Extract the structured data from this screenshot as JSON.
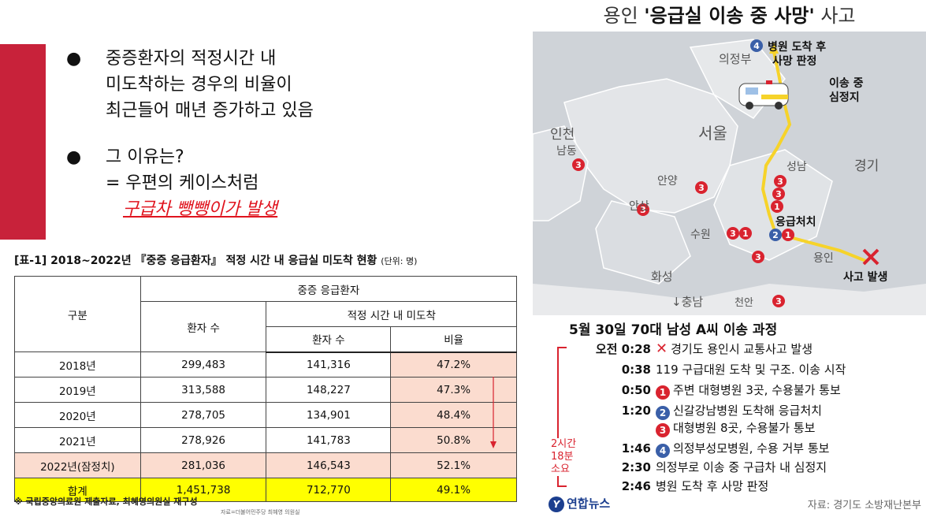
{
  "bullets": {
    "b1": [
      "중증환자의 적정시간 내",
      "미도착하는 경우의 비율이",
      "최근들어 매년 증가하고 있음"
    ],
    "b2_line1": "그 이유는?",
    "b2_line2": "= 우편의 케이스처럼",
    "b2_highlight": "구급차 뺑뺑이가 발생",
    "bullet_symbol": "●"
  },
  "table": {
    "caption": "[표-1] 2018~2022년 『중증 응급환자』 적정 시간 내 응급실 미도착 현황",
    "unit": "(단위: 명)",
    "header_group": "중증 응급환자",
    "header_category": "구분",
    "header_patients": "환자 수",
    "header_not_arrived": "적정 시간 내 미도착",
    "header_sub_patients": "환자 수",
    "header_sub_rate": "비율",
    "rows": [
      {
        "year": "2018년",
        "patients": "299,483",
        "not_arrived": "141,316",
        "rate": "47.2%"
      },
      {
        "year": "2019년",
        "patients": "313,588",
        "not_arrived": "148,227",
        "rate": "47.3%"
      },
      {
        "year": "2020년",
        "patients": "278,705",
        "not_arrived": "134,901",
        "rate": "48.4%"
      },
      {
        "year": "2021년",
        "patients": "278,926",
        "not_arrived": "141,783",
        "rate": "50.8%"
      },
      {
        "year": "2022년(잠정치)",
        "patients": "281,036",
        "not_arrived": "146,543",
        "rate": "52.1%"
      }
    ],
    "total": {
      "label": "합계",
      "patients": "1,451,738",
      "not_arrived": "712,770",
      "rate": "49.1%"
    },
    "note": "※ 국립중앙의료원 제출자료, 최혜영의원실 재구성",
    "source_small": "자료=더불어민주당 최혜영 의원실"
  },
  "map": {
    "title_pre": "용인 ",
    "title_bold": "'응급실 이송 중 사망'",
    "title_post": " 사고",
    "labels": {
      "uijeongbu": "의정부",
      "seoul": "서울",
      "incheon": "인천",
      "namdong": "남동",
      "anyang": "안양",
      "ansan": "안산",
      "suwon": "수원",
      "hwaseong": "화성",
      "seongnam": "성남",
      "gyeonggi": "경기",
      "yongin": "용인",
      "chungnam": "↓충남",
      "cheonan": "천안",
      "arrival1": "병원 도착 후",
      "arrival2": "사망 판정",
      "arrest1": "이송 중",
      "arrest2": "심정지",
      "treatment": "응급처치",
      "accident": "사고 발생"
    },
    "colors": {
      "accent_red": "#d9232f",
      "marker_blue": "#3a5fa8",
      "route_yellow": "#f6d32a"
    }
  },
  "timeline": {
    "heading": "5월 30일 70대 남성 A씨 이송 과정",
    "rows": [
      {
        "time": "오전 0:28",
        "marker": "✕",
        "marker_type": "x",
        "text": "경기도 용인시 교통사고 발생"
      },
      {
        "time": "0:38",
        "marker": "",
        "marker_type": "none",
        "text": "119 구급대원 도착 및 구조. 이송 시작"
      },
      {
        "time": "0:50",
        "marker": "1",
        "marker_type": "red",
        "text": "주변 대형병원 3곳, 수용불가 통보"
      },
      {
        "time": "1:20",
        "marker": "2",
        "marker_type": "blue",
        "text": "신갈강남병원 도착해 응급처치"
      },
      {
        "time": "",
        "marker": "3",
        "marker_type": "red",
        "text": "대형병원 8곳, 수용불가 통보"
      },
      {
        "time": "1:46",
        "marker": "4",
        "marker_type": "blue",
        "text": "의정부성모병원, 수용 거부 통보"
      },
      {
        "time": "2:30",
        "marker": "",
        "marker_type": "none",
        "text": "의정부로 이송 중 구급차 내 심정지"
      },
      {
        "time": "2:46",
        "marker": "",
        "marker_type": "none",
        "text": "병원 도착 후 사망 판정"
      }
    ],
    "duration": [
      "2시간",
      "18분",
      "소요"
    ]
  },
  "footer": {
    "brand": "연합뉴스",
    "brand_mark": "Y",
    "source": "자료: 경기도 소방재난본부"
  }
}
